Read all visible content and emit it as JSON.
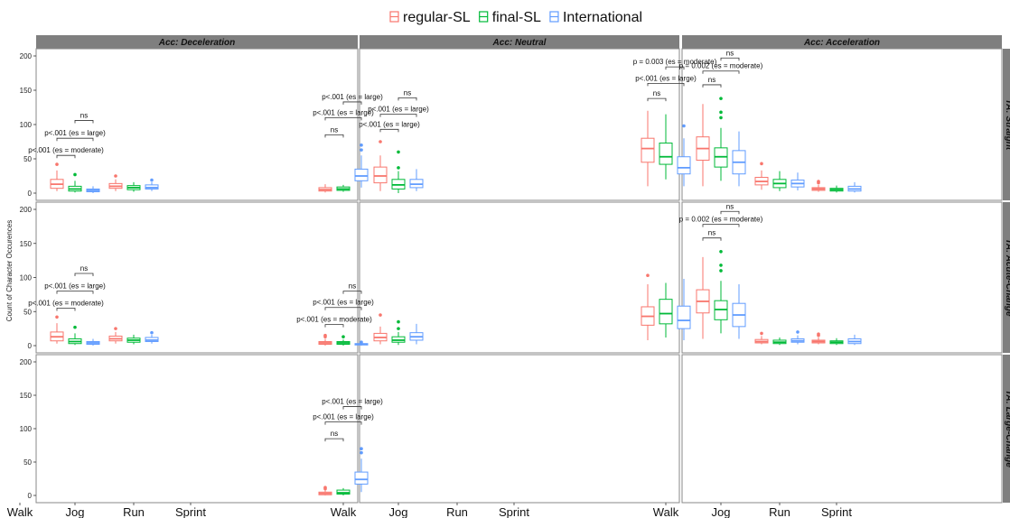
{
  "chart_data": {
    "type": "boxplot",
    "title": "",
    "ylabel": "Count of Character Occurences",
    "ylim": [
      0,
      200
    ],
    "yticks": [
      0,
      50,
      100,
      150,
      200
    ],
    "categories": [
      "Walk",
      "Jog",
      "Run",
      "Sprint"
    ],
    "columns": [
      "Acc: Deceleration",
      "Acc: Neutral",
      "Acc: Acceleration"
    ],
    "rows": [
      "TA: Straight",
      "TA: Acute-Change",
      "TA: Large-Change"
    ],
    "legend": {
      "position": "top",
      "entries": [
        "regular-SL",
        "final-SL",
        "International"
      ]
    },
    "colors": {
      "regular-SL": "#F8766D",
      "final-SL": "#00BA38",
      "International": "#619CFF"
    },
    "panels": [
      {
        "row": 0,
        "col": 0,
        "boxes": [
          {
            "cat": "Jog",
            "series": 0,
            "min": 3,
            "q1": 7,
            "median": 13,
            "q3": 20,
            "max": 33,
            "outliers": [
              42
            ]
          },
          {
            "cat": "Jog",
            "series": 1,
            "min": 1,
            "q1": 3,
            "median": 6,
            "q3": 10,
            "max": 18,
            "outliers": [
              27
            ]
          },
          {
            "cat": "Jog",
            "series": 2,
            "min": 0,
            "q1": 2,
            "median": 4,
            "q3": 6,
            "max": 10,
            "outliers": []
          },
          {
            "cat": "Run",
            "series": 0,
            "min": 3,
            "q1": 7,
            "median": 10,
            "q3": 14,
            "max": 20,
            "outliers": [
              25
            ]
          },
          {
            "cat": "Run",
            "series": 1,
            "min": 2,
            "q1": 5,
            "median": 8,
            "q3": 11,
            "max": 16,
            "outliers": []
          },
          {
            "cat": "Run",
            "series": 2,
            "min": 3,
            "q1": 6,
            "median": 8,
            "q3": 12,
            "max": 16,
            "outliers": [
              19
            ]
          }
        ],
        "comparisons": [
          {
            "cat": "Jog",
            "from": 0,
            "to": 1,
            "y": 55,
            "label": "p<.001 (es = moderate)"
          },
          {
            "cat": "Jog",
            "from": 0,
            "to": 2,
            "y": 80,
            "label": "p<.001 (es = large)"
          },
          {
            "cat": "Jog",
            "from": 1,
            "to": 2,
            "y": 106,
            "label": "ns"
          }
        ]
      },
      {
        "row": 0,
        "col": 1,
        "boxes": [
          {
            "cat": "Walk",
            "series": 0,
            "min": 1,
            "q1": 3,
            "median": 5,
            "q3": 8,
            "max": 13,
            "outliers": []
          },
          {
            "cat": "Walk",
            "series": 1,
            "min": 2,
            "q1": 4,
            "median": 6,
            "q3": 9,
            "max": 12,
            "outliers": []
          },
          {
            "cat": "Walk",
            "series": 2,
            "min": 8,
            "q1": 18,
            "median": 25,
            "q3": 35,
            "max": 55,
            "outliers": [
              63,
              70
            ]
          },
          {
            "cat": "Jog",
            "series": 0,
            "min": 3,
            "q1": 15,
            "median": 25,
            "q3": 38,
            "max": 55,
            "outliers": [
              75
            ]
          },
          {
            "cat": "Jog",
            "series": 1,
            "min": 0,
            "q1": 6,
            "median": 12,
            "q3": 20,
            "max": 32,
            "outliers": [
              37,
              60
            ]
          },
          {
            "cat": "Jog",
            "series": 2,
            "min": 3,
            "q1": 8,
            "median": 13,
            "q3": 20,
            "max": 35,
            "outliers": []
          }
        ],
        "comparisons": [
          {
            "cat": "Walk",
            "from": 0,
            "to": 1,
            "y": 85,
            "label": "ns"
          },
          {
            "cat": "Walk",
            "from": 0,
            "to": 2,
            "y": 110,
            "label": "p<.001 (es = large)"
          },
          {
            "cat": "Walk",
            "from": 1,
            "to": 2,
            "y": 133,
            "label": "p<.001 (es = large)"
          },
          {
            "cat": "Jog",
            "from": 0,
            "to": 1,
            "y": 93,
            "label": "p<.001 (es = large)"
          },
          {
            "cat": "Jog",
            "from": 0,
            "to": 2,
            "y": 115,
            "label": "p<.001 (es = large)"
          },
          {
            "cat": "Jog",
            "from": 1,
            "to": 2,
            "y": 139,
            "label": "ns"
          }
        ]
      },
      {
        "row": 0,
        "col": 2,
        "boxes": [
          {
            "cat": "Walk",
            "series": 0,
            "min": 10,
            "q1": 45,
            "median": 65,
            "q3": 80,
            "max": 120,
            "outliers": []
          },
          {
            "cat": "Walk",
            "series": 1,
            "min": 20,
            "q1": 42,
            "median": 53,
            "q3": 73,
            "max": 115,
            "outliers": []
          },
          {
            "cat": "Walk",
            "series": 2,
            "min": 10,
            "q1": 28,
            "median": 37,
            "q3": 53,
            "max": 80,
            "outliers": [
              98
            ]
          },
          {
            "cat": "Jog",
            "series": 0,
            "min": 10,
            "q1": 48,
            "median": 65,
            "q3": 82,
            "max": 130,
            "outliers": []
          },
          {
            "cat": "Jog",
            "series": 1,
            "min": 18,
            "q1": 38,
            "median": 53,
            "q3": 66,
            "max": 95,
            "outliers": [
              110,
              118,
              138
            ]
          },
          {
            "cat": "Jog",
            "series": 2,
            "min": 10,
            "q1": 28,
            "median": 45,
            "q3": 62,
            "max": 90,
            "outliers": []
          },
          {
            "cat": "Run",
            "series": 0,
            "min": 5,
            "q1": 12,
            "median": 17,
            "q3": 23,
            "max": 33,
            "outliers": [
              43
            ]
          },
          {
            "cat": "Run",
            "series": 1,
            "min": 3,
            "q1": 8,
            "median": 14,
            "q3": 20,
            "max": 32,
            "outliers": []
          },
          {
            "cat": "Run",
            "series": 2,
            "min": 4,
            "q1": 9,
            "median": 14,
            "q3": 19,
            "max": 30,
            "outliers": []
          },
          {
            "cat": "Sprint",
            "series": 0,
            "min": 2,
            "q1": 4,
            "median": 6,
            "q3": 8,
            "max": 12,
            "outliers": [
              15,
              17
            ]
          },
          {
            "cat": "Sprint",
            "series": 1,
            "min": 1,
            "q1": 3,
            "median": 5,
            "q3": 7,
            "max": 11,
            "outliers": []
          },
          {
            "cat": "Sprint",
            "series": 2,
            "min": 1,
            "q1": 3,
            "median": 6,
            "q3": 10,
            "max": 16,
            "outliers": []
          }
        ],
        "comparisons": [
          {
            "cat": "Walk",
            "from": 0,
            "to": 1,
            "y": 138,
            "label": "ns"
          },
          {
            "cat": "Walk",
            "from": 0,
            "to": 2,
            "y": 160,
            "label": "p<.001 (es = large)"
          },
          {
            "cat": "Walk",
            "from": 1,
            "to": 2,
            "y": 184,
            "label": "p =  0.003 (es = moderate)"
          },
          {
            "cat": "Jog",
            "from": 0,
            "to": 1,
            "y": 158,
            "label": "ns"
          },
          {
            "cat": "Jog",
            "from": 0,
            "to": 2,
            "y": 178,
            "label": "p =  0.002 (es = moderate)"
          },
          {
            "cat": "Jog",
            "from": 1,
            "to": 2,
            "y": 197,
            "label": "ns"
          }
        ]
      },
      {
        "row": 1,
        "col": 0,
        "boxes": [
          {
            "cat": "Jog",
            "series": 0,
            "min": 3,
            "q1": 7,
            "median": 13,
            "q3": 20,
            "max": 33,
            "outliers": [
              42
            ]
          },
          {
            "cat": "Jog",
            "series": 1,
            "min": 1,
            "q1": 3,
            "median": 6,
            "q3": 10,
            "max": 18,
            "outliers": [
              27
            ]
          },
          {
            "cat": "Jog",
            "series": 2,
            "min": 0,
            "q1": 2,
            "median": 4,
            "q3": 6,
            "max": 10,
            "outliers": []
          },
          {
            "cat": "Run",
            "series": 0,
            "min": 3,
            "q1": 7,
            "median": 10,
            "q3": 14,
            "max": 20,
            "outliers": [
              25
            ]
          },
          {
            "cat": "Run",
            "series": 1,
            "min": 2,
            "q1": 5,
            "median": 8,
            "q3": 11,
            "max": 16,
            "outliers": []
          },
          {
            "cat": "Run",
            "series": 2,
            "min": 3,
            "q1": 6,
            "median": 8,
            "q3": 12,
            "max": 16,
            "outliers": [
              19
            ]
          }
        ],
        "comparisons": [
          {
            "cat": "Jog",
            "from": 0,
            "to": 1,
            "y": 55,
            "label": "p<.001 (es = moderate)"
          },
          {
            "cat": "Jog",
            "from": 0,
            "to": 2,
            "y": 80,
            "label": "p<.001 (es = large)"
          },
          {
            "cat": "Jog",
            "from": 1,
            "to": 2,
            "y": 106,
            "label": "ns"
          }
        ]
      },
      {
        "row": 1,
        "col": 1,
        "boxes": [
          {
            "cat": "Walk",
            "series": 0,
            "min": 0,
            "q1": 2,
            "median": 4,
            "q3": 6,
            "max": 10,
            "outliers": [
              13,
              15
            ]
          },
          {
            "cat": "Walk",
            "series": 1,
            "min": 0,
            "q1": 2,
            "median": 4,
            "q3": 6,
            "max": 9,
            "outliers": [
              13
            ]
          },
          {
            "cat": "Walk",
            "series": 2,
            "min": 0,
            "q1": 1,
            "median": 2,
            "q3": 3,
            "max": 5,
            "outliers": [
              5
            ]
          },
          {
            "cat": "Jog",
            "series": 0,
            "min": 2,
            "q1": 7,
            "median": 12,
            "q3": 18,
            "max": 28,
            "outliers": [
              45
            ]
          },
          {
            "cat": "Jog",
            "series": 1,
            "min": 1,
            "q1": 5,
            "median": 8,
            "q3": 13,
            "max": 20,
            "outliers": [
              25,
              35
            ]
          },
          {
            "cat": "Jog",
            "series": 2,
            "min": 2,
            "q1": 8,
            "median": 13,
            "q3": 19,
            "max": 32,
            "outliers": []
          }
        ],
        "comparisons": [
          {
            "cat": "Walk",
            "from": 0,
            "to": 1,
            "y": 31,
            "label": "p<.001 (es = moderate)"
          },
          {
            "cat": "Walk",
            "from": 0,
            "to": 2,
            "y": 56,
            "label": "p<.001 (es = large)"
          },
          {
            "cat": "Walk",
            "from": 1,
            "to": 2,
            "y": 80,
            "label": "ns"
          }
        ]
      },
      {
        "row": 1,
        "col": 2,
        "boxes": [
          {
            "cat": "Walk",
            "series": 0,
            "min": 8,
            "q1": 30,
            "median": 43,
            "q3": 57,
            "max": 90,
            "outliers": [
              103
            ]
          },
          {
            "cat": "Walk",
            "series": 1,
            "min": 12,
            "q1": 32,
            "median": 47,
            "q3": 68,
            "max": 92,
            "outliers": []
          },
          {
            "cat": "Walk",
            "series": 2,
            "min": 8,
            "q1": 25,
            "median": 37,
            "q3": 58,
            "max": 98,
            "outliers": []
          },
          {
            "cat": "Jog",
            "series": 0,
            "min": 10,
            "q1": 48,
            "median": 65,
            "q3": 82,
            "max": 130,
            "outliers": []
          },
          {
            "cat": "Jog",
            "series": 1,
            "min": 18,
            "q1": 38,
            "median": 53,
            "q3": 66,
            "max": 95,
            "outliers": [
              110,
              118,
              138
            ]
          },
          {
            "cat": "Jog",
            "series": 2,
            "min": 10,
            "q1": 28,
            "median": 45,
            "q3": 62,
            "max": 90,
            "outliers": []
          },
          {
            "cat": "Run",
            "series": 0,
            "min": 2,
            "q1": 4,
            "median": 6,
            "q3": 9,
            "max": 14,
            "outliers": [
              18
            ]
          },
          {
            "cat": "Run",
            "series": 1,
            "min": 1,
            "q1": 3,
            "median": 5,
            "q3": 8,
            "max": 12,
            "outliers": []
          },
          {
            "cat": "Run",
            "series": 2,
            "min": 2,
            "q1": 5,
            "median": 7,
            "q3": 10,
            "max": 15,
            "outliers": [
              20
            ]
          },
          {
            "cat": "Sprint",
            "series": 0,
            "min": 2,
            "q1": 4,
            "median": 6,
            "q3": 8,
            "max": 12,
            "outliers": [
              15,
              17
            ]
          },
          {
            "cat": "Sprint",
            "series": 1,
            "min": 1,
            "q1": 3,
            "median": 5,
            "q3": 7,
            "max": 11,
            "outliers": []
          },
          {
            "cat": "Sprint",
            "series": 2,
            "min": 1,
            "q1": 3,
            "median": 6,
            "q3": 10,
            "max": 16,
            "outliers": []
          }
        ],
        "comparisons": [
          {
            "cat": "Jog",
            "from": 0,
            "to": 1,
            "y": 158,
            "label": "ns"
          },
          {
            "cat": "Jog",
            "from": 0,
            "to": 2,
            "y": 178,
            "label": "p =  0.002 (es = moderate)"
          },
          {
            "cat": "Jog",
            "from": 1,
            "to": 2,
            "y": 197,
            "label": "ns"
          }
        ]
      },
      {
        "row": 2,
        "col": 0,
        "boxes": [],
        "comparisons": []
      },
      {
        "row": 2,
        "col": 1,
        "boxes": [
          {
            "cat": "Walk",
            "series": 0,
            "min": 0,
            "q1": 1,
            "median": 3,
            "q3": 5,
            "max": 8,
            "outliers": [
              10,
              12
            ]
          },
          {
            "cat": "Walk",
            "series": 1,
            "min": 0,
            "q1": 2,
            "median": 4,
            "q3": 8,
            "max": 11,
            "outliers": []
          },
          {
            "cat": "Walk",
            "series": 2,
            "min": 5,
            "q1": 17,
            "median": 24,
            "q3": 35,
            "max": 55,
            "outliers": [
              64,
              70
            ]
          }
        ],
        "comparisons": [
          {
            "cat": "Walk",
            "from": 0,
            "to": 1,
            "y": 85,
            "label": "ns"
          },
          {
            "cat": "Walk",
            "from": 0,
            "to": 2,
            "y": 110,
            "label": "p<.001 (es = large)"
          },
          {
            "cat": "Walk",
            "from": 1,
            "to": 2,
            "y": 133,
            "label": "p<.001 (es = large)"
          }
        ]
      },
      {
        "row": 2,
        "col": 2,
        "boxes": [],
        "comparisons": []
      }
    ]
  }
}
